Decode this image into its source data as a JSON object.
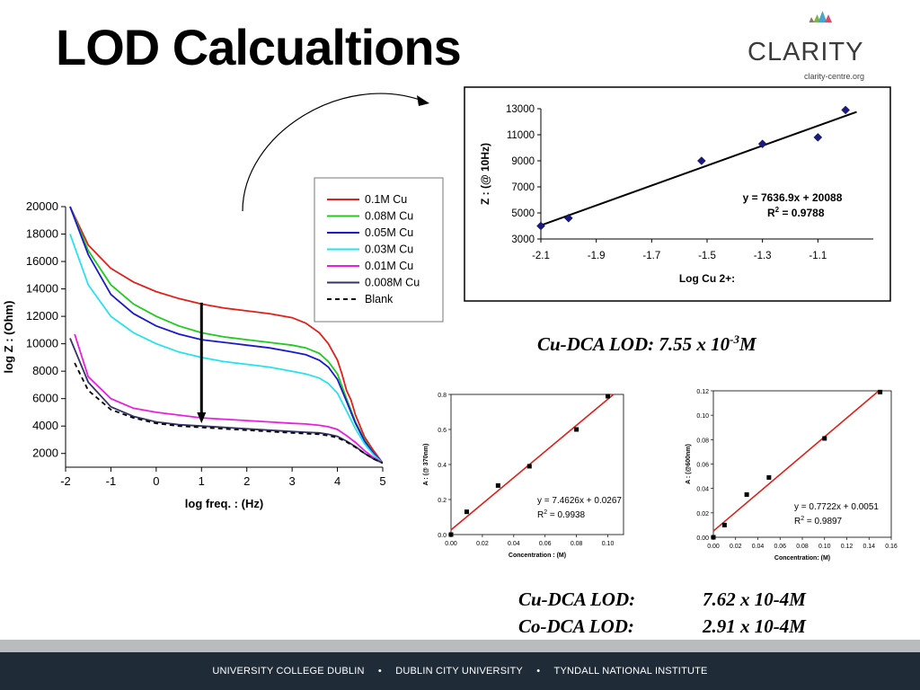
{
  "slide": {
    "title": "LOD Calcualtions",
    "logo_text": "CLARITY",
    "logo_sub": "clarity-centre.org",
    "lod_main": {
      "prefix": "Cu-DCA LOD: 7.55 x 10",
      "superscript": "-3",
      "suffix": "M"
    },
    "lod_list": [
      {
        "label": "Cu-DCA LOD:",
        "value": "7.62 x 10-4M"
      },
      {
        "label": "Co-DCA LOD:",
        "value": "2.91 x 10-4M"
      }
    ],
    "footer": [
      "UNIVERSITY COLLEGE DUBLIN",
      "DUBLIN CITY UNIVERSITY",
      "TYNDALL NATIONAL INSTITUTE"
    ],
    "footer_separator": "•",
    "colors": {
      "footer_bg": "#1f2c38",
      "footer_strip": "#b9bcbf",
      "regression_red": "#e0201a",
      "marker_blue": "#1a1a80"
    }
  },
  "chart_data": [
    {
      "id": "impedance",
      "type": "line",
      "xlabel": "log freq. : (Hz)",
      "ylabel": "log Z : (Ohm)",
      "xlim": [
        -2,
        5
      ],
      "ylim": [
        1000,
        20000
      ],
      "xticks": [
        -2,
        -1,
        0,
        1,
        2,
        3,
        4,
        5
      ],
      "yticks": [
        2000,
        4000,
        6000,
        8000,
        10000,
        12000,
        14000,
        16000,
        18000,
        20000
      ],
      "grid": false,
      "legend": "top-right",
      "series": [
        {
          "name": "0.1M  Cu",
          "color": "#e0201a",
          "dash": "",
          "x": [
            -1.9,
            -1.5,
            -1,
            -0.5,
            0,
            0.5,
            1,
            1.5,
            2,
            2.5,
            3,
            3.3,
            3.6,
            3.8,
            4,
            4.1,
            4.2,
            4.3,
            4.4,
            4.6,
            4.8,
            5
          ],
          "y": [
            20000,
            17200,
            15500,
            14500,
            13800,
            13300,
            12900,
            12600,
            12400,
            12200,
            11900,
            11500,
            10800,
            10000,
            8800,
            7800,
            6600,
            5900,
            4800,
            3200,
            2200,
            1300
          ]
        },
        {
          "name": "0.08M  Cu",
          "color": "#1ecb1e",
          "dash": "",
          "x": [
            -1.9,
            -1.5,
            -1,
            -0.5,
            0,
            0.5,
            1,
            1.5,
            2,
            2.5,
            3,
            3.3,
            3.6,
            3.8,
            4,
            4.2,
            4.4,
            4.6,
            4.8,
            5
          ],
          "y": [
            20000,
            16800,
            14300,
            12900,
            12000,
            11300,
            10800,
            10500,
            10300,
            10100,
            9900,
            9700,
            9300,
            8700,
            7800,
            6000,
            4300,
            3000,
            2000,
            1300
          ]
        },
        {
          "name": "0.05M  Cu",
          "color": "#1a1acc",
          "dash": "",
          "x": [
            -1.9,
            -1.5,
            -1,
            -0.5,
            0,
            0.5,
            1,
            1.5,
            2,
            2.5,
            3,
            3.3,
            3.6,
            3.8,
            4,
            4.2,
            4.4,
            4.6,
            4.8,
            5
          ],
          "y": [
            20000,
            16500,
            13600,
            12200,
            11300,
            10700,
            10300,
            10100,
            9900,
            9700,
            9400,
            9200,
            8800,
            8300,
            7400,
            5800,
            4200,
            2900,
            2000,
            1300
          ]
        },
        {
          "name": "0.03M  Cu",
          "color": "#25e2ee",
          "dash": "",
          "x": [
            -1.9,
            -1.5,
            -1,
            -0.5,
            0,
            0.5,
            1,
            1.5,
            2,
            2.5,
            3,
            3.3,
            3.6,
            3.8,
            4,
            4.2,
            4.4,
            4.6,
            4.8,
            5
          ],
          "y": [
            18000,
            14300,
            12000,
            10800,
            10000,
            9400,
            9000,
            8700,
            8500,
            8300,
            8000,
            7800,
            7500,
            7100,
            6400,
            5100,
            3800,
            2700,
            1900,
            1300
          ]
        },
        {
          "name": "0.01M  Cu",
          "color": "#ea1ee0",
          "dash": "",
          "x": [
            -1.8,
            -1.5,
            -1,
            -0.5,
            0,
            0.5,
            1,
            1.5,
            2,
            2.5,
            3,
            3.3,
            3.6,
            3.8,
            4,
            4.2,
            4.4,
            4.6,
            4.8,
            5
          ],
          "y": [
            10700,
            7600,
            6000,
            5300,
            5000,
            4800,
            4600,
            4500,
            4400,
            4300,
            4200,
            4150,
            4050,
            3950,
            3750,
            3300,
            2800,
            2200,
            1700,
            1300
          ]
        },
        {
          "name": "0.008M Cu",
          "color": "#333366",
          "dash": "",
          "x": [
            -1.9,
            -1.5,
            -1,
            -0.5,
            0,
            0.5,
            1,
            1.5,
            2,
            2.5,
            3,
            3.3,
            3.6,
            3.8,
            4,
            4.2,
            4.4,
            4.6,
            4.8,
            5
          ],
          "y": [
            10400,
            7200,
            5400,
            4700,
            4300,
            4100,
            4000,
            3900,
            3800,
            3700,
            3600,
            3550,
            3500,
            3400,
            3250,
            2900,
            2500,
            2000,
            1600,
            1300
          ]
        },
        {
          "name": "Blank",
          "color": "#000000",
          "dash": "5,4",
          "x": [
            -1.8,
            -1.5,
            -1,
            -0.5,
            0,
            0.5,
            1,
            1.5,
            2,
            2.5,
            3,
            3.3,
            3.6,
            3.8,
            4,
            4.2,
            4.4,
            4.6,
            4.8,
            5
          ],
          "y": [
            8600,
            6600,
            5200,
            4600,
            4200,
            4000,
            3900,
            3800,
            3700,
            3600,
            3500,
            3450,
            3400,
            3300,
            3150,
            2850,
            2450,
            2000,
            1600,
            1300
          ]
        }
      ]
    },
    {
      "id": "calibration-z",
      "type": "scatter",
      "xlabel": "Log Cu 2+:",
      "ylabel": "Z : (@ 10Hz)",
      "xlim": [
        -2.1,
        -0.9
      ],
      "ylim": [
        3000,
        13000
      ],
      "xticks": [
        -2.1,
        -1.9,
        -1.7,
        -1.5,
        -1.3,
        -1.1
      ],
      "yticks": [
        3000,
        5000,
        7000,
        9000,
        11000,
        13000
      ],
      "grid": false,
      "points": {
        "x": [
          -2.1,
          -2.0,
          -1.52,
          -1.3,
          -1.1,
          -1.0
        ],
        "y": [
          4000,
          4600,
          9000,
          10300,
          10800,
          12900
        ]
      },
      "trendline": {
        "slope": 7636.9,
        "intercept": 20088
      },
      "equation": "y = 7636.9x + 20088",
      "r2_label": "R",
      "r2_sup": "2",
      "r2_value": " = 0.9788"
    },
    {
      "id": "calibration-cu",
      "type": "scatter",
      "xlabel": "Concentration : (M)",
      "ylabel": "A : (@ 370nm)",
      "xlim": [
        0,
        0.11
      ],
      "ylim": [
        0,
        0.8
      ],
      "xticks": [
        "0.00",
        "0.02",
        "0.04",
        "0.06",
        "0.08",
        "0.10"
      ],
      "yticks": [
        "0.0",
        "0.2",
        "0.4",
        "0.6",
        "0.8"
      ],
      "grid": false,
      "points": {
        "x": [
          0,
          0.01,
          0.03,
          0.05,
          0.08,
          0.1
        ],
        "y": [
          0,
          0.13,
          0.28,
          0.39,
          0.6,
          0.79
        ]
      },
      "trendline": {
        "slope": 7.4626,
        "intercept": 0.0267
      },
      "equation": "y = 7.4626x + 0.0267",
      "r2_label": "R",
      "r2_sup": "2",
      "r2_value": " = 0.9938"
    },
    {
      "id": "calibration-co",
      "type": "scatter",
      "xlabel": "Concentration: (M)",
      "ylabel": "A : (@600nm)",
      "xlim": [
        0,
        0.16
      ],
      "ylim": [
        0,
        0.12
      ],
      "xticks": [
        "0.00",
        "0.02",
        "0.04",
        "0.06",
        "0.08",
        "0.10",
        "0.12",
        "0.14",
        "0.16"
      ],
      "yticks": [
        "0.00",
        "0.02",
        "0.04",
        "0.06",
        "0.08",
        "0.10",
        "0.12"
      ],
      "grid": false,
      "points": {
        "x": [
          0,
          0.01,
          0.03,
          0.05,
          0.1,
          0.15
        ],
        "y": [
          0,
          0.01,
          0.035,
          0.049,
          0.081,
          0.119
        ]
      },
      "trendline": {
        "slope": 0.7722,
        "intercept": 0.0051
      },
      "equation": "y = 0.7722x + 0.0051",
      "r2_label": "R",
      "r2_sup": "2",
      "r2_value": " = 0.9897"
    }
  ]
}
